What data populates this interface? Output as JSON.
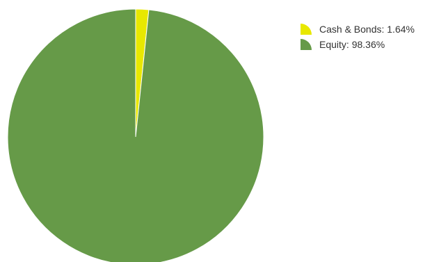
{
  "chart_data": {
    "type": "pie",
    "slices": [
      {
        "label": "Cash & Bonds",
        "value": 1.64,
        "display": "Cash & Bonds: 1.64%",
        "color": "#e8e800"
      },
      {
        "label": "Equity",
        "value": 98.36,
        "display": "Equity: 98.36%",
        "color": "#669a48"
      }
    ],
    "legend_position": "top-right"
  }
}
